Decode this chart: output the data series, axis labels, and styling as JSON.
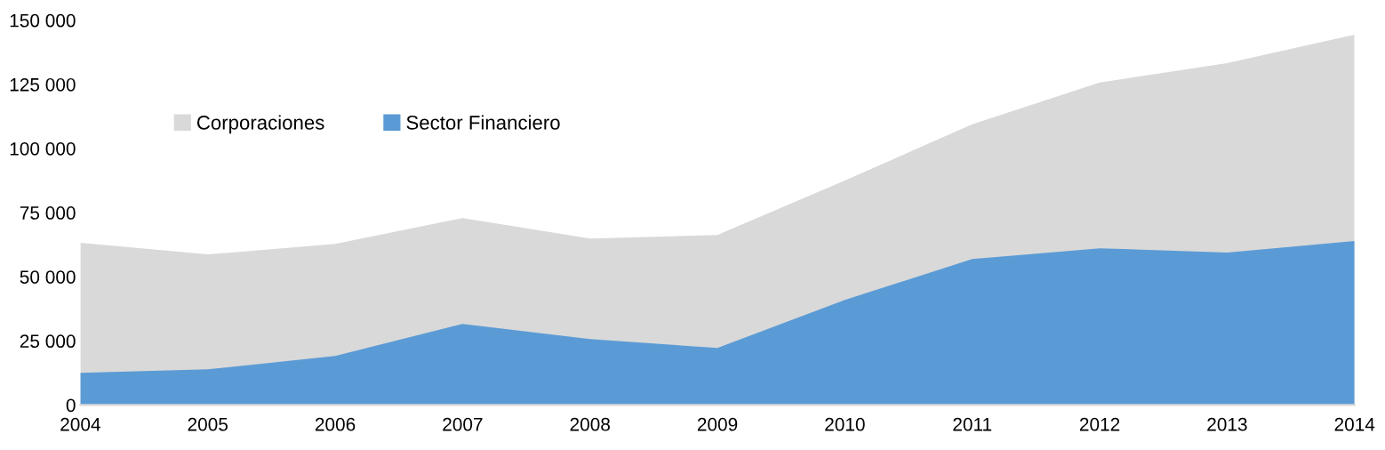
{
  "chart_data": {
    "type": "area",
    "x": [
      2004,
      2005,
      2006,
      2007,
      2008,
      2009,
      2010,
      2011,
      2012,
      2013,
      2014
    ],
    "series": [
      {
        "name": "Corporaciones",
        "color": "#d9d9d9",
        "values": [
          63200,
          58700,
          62800,
          72900,
          64900,
          66300,
          87500,
          109400,
          125700,
          133300,
          144400
        ]
      },
      {
        "name": "Sector Financiero",
        "color": "#5b9bd5",
        "values": [
          12500,
          13900,
          19100,
          31600,
          25700,
          22200,
          41000,
          56900,
          61100,
          59400,
          63900
        ]
      }
    ],
    "xlim": [
      2004,
      2014
    ],
    "xticks": [
      2004,
      2005,
      2006,
      2007,
      2008,
      2009,
      2010,
      2011,
      2012,
      2013,
      2014
    ],
    "ylim": [
      0,
      150000
    ],
    "yticks": [
      0,
      {
        "value": 25000,
        "label": "25 000"
      },
      {
        "value": 50000,
        "label": "50 000"
      },
      {
        "value": 75000,
        "label": "75 000"
      },
      {
        "value": 100000,
        "label": "100 000"
      },
      {
        "value": 125000,
        "label": "125 000"
      },
      {
        "value": 150000,
        "label": "150 000"
      }
    ],
    "grid": false,
    "legend": "top left"
  }
}
